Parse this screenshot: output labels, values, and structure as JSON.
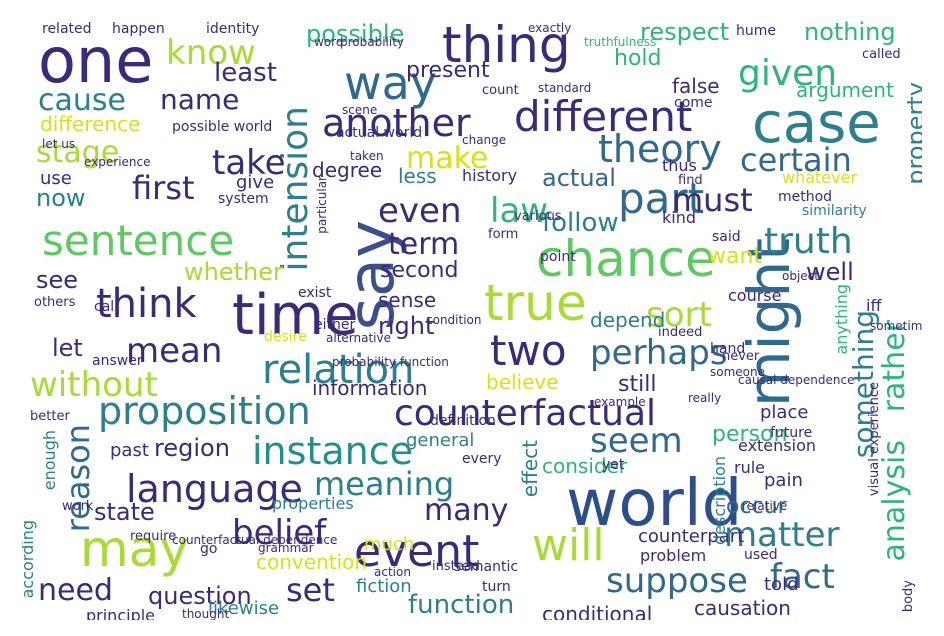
{
  "palette": {
    "dark_purple": "#440154",
    "indigo": "#3b2a7a",
    "blue": "#31688e",
    "teal_blue": "#2c7f8e",
    "teal": "#21908d",
    "green_teal": "#2fb47c",
    "green": "#5ec962",
    "lime": "#a8db34",
    "yellow": "#d8e219",
    "bright_yellow": "#e6e419"
  },
  "words": [
    {
      "id": "world",
      "text": "world"
    },
    {
      "id": "one",
      "text": "one"
    },
    {
      "id": "say",
      "text": "say"
    },
    {
      "id": "time",
      "text": "time"
    },
    {
      "id": "case",
      "text": "case"
    },
    {
      "id": "might",
      "text": "might"
    },
    {
      "id": "thing",
      "text": "thing"
    },
    {
      "id": "way",
      "text": "way"
    },
    {
      "id": "chance",
      "text": "chance"
    },
    {
      "id": "true",
      "text": "true"
    },
    {
      "id": "event",
      "text": "event"
    },
    {
      "id": "may",
      "text": "may"
    },
    {
      "id": "will",
      "text": "will"
    },
    {
      "id": "sentence",
      "text": "sentence"
    },
    {
      "id": "different",
      "text": "different"
    },
    {
      "id": "another",
      "text": "another"
    },
    {
      "id": "relation",
      "text": "relation"
    },
    {
      "id": "language",
      "text": "language"
    },
    {
      "id": "proposition",
      "text": "proposition"
    },
    {
      "id": "counterfactual",
      "text": "counterfactual"
    },
    {
      "id": "intension",
      "text": "intension"
    },
    {
      "id": "part",
      "text": "part"
    },
    {
      "id": "think",
      "text": "think"
    },
    {
      "id": "two",
      "text": "two"
    },
    {
      "id": "cause",
      "text": "cause"
    },
    {
      "id": "given",
      "text": "given"
    },
    {
      "id": "know",
      "text": "know"
    },
    {
      "id": "stage",
      "text": "stage"
    },
    {
      "id": "take",
      "text": "take"
    },
    {
      "id": "first",
      "text": "first"
    },
    {
      "id": "theory",
      "text": "theory"
    },
    {
      "id": "certain",
      "text": "certain"
    },
    {
      "id": "make",
      "text": "make"
    },
    {
      "id": "truth",
      "text": "truth"
    },
    {
      "id": "must",
      "text": "must"
    },
    {
      "id": "even",
      "text": "even"
    },
    {
      "id": "law",
      "text": "law"
    },
    {
      "id": "term",
      "text": "term"
    },
    {
      "id": "something",
      "text": "something"
    },
    {
      "id": "rather",
      "text": "rather"
    },
    {
      "id": "analysis",
      "text": "analysis"
    },
    {
      "id": "perhaps",
      "text": "perhaps"
    },
    {
      "id": "mean",
      "text": "mean"
    },
    {
      "id": "without",
      "text": "without"
    },
    {
      "id": "instance",
      "text": "instance"
    },
    {
      "id": "seem",
      "text": "seem"
    },
    {
      "id": "meaning",
      "text": "meaning"
    },
    {
      "id": "belief",
      "text": "belief"
    },
    {
      "id": "reason",
      "text": "reason"
    },
    {
      "id": "suppose",
      "text": "suppose"
    },
    {
      "id": "fact",
      "text": "fact"
    },
    {
      "id": "matter",
      "text": "matter"
    },
    {
      "id": "need",
      "text": "need"
    },
    {
      "id": "set",
      "text": "set"
    },
    {
      "id": "question",
      "text": "question"
    },
    {
      "id": "function",
      "text": "function"
    },
    {
      "id": "many",
      "text": "many"
    },
    {
      "id": "sort",
      "text": "sort"
    },
    {
      "id": "possible",
      "text": "possible"
    },
    {
      "id": "name",
      "text": "name"
    },
    {
      "id": "least",
      "text": "least"
    },
    {
      "id": "difference",
      "text": "difference"
    },
    {
      "id": "now",
      "text": "now"
    },
    {
      "id": "see",
      "text": "see"
    },
    {
      "id": "whether",
      "text": "whether"
    },
    {
      "id": "follow",
      "text": "follow"
    },
    {
      "id": "well",
      "text": "well"
    },
    {
      "id": "property",
      "text": "property"
    },
    {
      "id": "respect",
      "text": "respect"
    },
    {
      "id": "nothing",
      "text": "nothing"
    },
    {
      "id": "present",
      "text": "present"
    },
    {
      "id": "hold",
      "text": "hold"
    },
    {
      "id": "argument",
      "text": "argument"
    },
    {
      "id": "false",
      "text": "false"
    },
    {
      "id": "actual",
      "text": "actual"
    },
    {
      "id": "less",
      "text": "less"
    },
    {
      "id": "second",
      "text": "second"
    },
    {
      "id": "sense",
      "text": "sense"
    },
    {
      "id": "depend",
      "text": "depend"
    },
    {
      "id": "believe",
      "text": "believe"
    },
    {
      "id": "still",
      "text": "still"
    },
    {
      "id": "right",
      "text": "right"
    },
    {
      "id": "let",
      "text": "let"
    },
    {
      "id": "region",
      "text": "region"
    },
    {
      "id": "state",
      "text": "state"
    },
    {
      "id": "convention",
      "text": "convention"
    },
    {
      "id": "much",
      "text": "much"
    },
    {
      "id": "consider",
      "text": "consider"
    },
    {
      "id": "person",
      "text": "person"
    },
    {
      "id": "effect",
      "text": "effect"
    },
    {
      "id": "general",
      "text": "general"
    },
    {
      "id": "past",
      "text": "past"
    },
    {
      "id": "give",
      "text": "give"
    },
    {
      "id": "use",
      "text": "use"
    },
    {
      "id": "degree",
      "text": "degree"
    },
    {
      "id": "history",
      "text": "history"
    },
    {
      "id": "want",
      "text": "want"
    },
    {
      "id": "information",
      "text": "information"
    },
    {
      "id": "occur",
      "text": "occur"
    },
    {
      "id": "counterpart",
      "text": "counterpart"
    },
    {
      "id": "conditional",
      "text": "conditional"
    },
    {
      "id": "causation",
      "text": "causation"
    },
    {
      "id": "fiction",
      "text": "fiction"
    },
    {
      "id": "likewise",
      "text": "likewise"
    },
    {
      "id": "principle",
      "text": "principle"
    },
    {
      "id": "pain",
      "text": "pain"
    },
    {
      "id": "rule",
      "text": "rule"
    },
    {
      "id": "extension",
      "text": "extension"
    },
    {
      "id": "description",
      "text": "description"
    },
    {
      "id": "anything",
      "text": "anything"
    },
    {
      "id": "course",
      "text": "course"
    },
    {
      "id": "place",
      "text": "place"
    },
    {
      "id": "told",
      "text": "told"
    },
    {
      "id": "problem",
      "text": "problem"
    },
    {
      "id": "properties",
      "text": "properties"
    },
    {
      "id": "according",
      "text": "according"
    },
    {
      "id": "enough",
      "text": "enough"
    },
    {
      "id": "answer",
      "text": "answer"
    },
    {
      "id": "related",
      "text": "related"
    },
    {
      "id": "happen",
      "text": "happen"
    },
    {
      "id": "identity",
      "text": "identity"
    },
    {
      "id": "exactly",
      "text": "exactly"
    },
    {
      "id": "hume",
      "text": "hume"
    },
    {
      "id": "called",
      "text": "called"
    },
    {
      "id": "whatever",
      "text": "whatever"
    },
    {
      "id": "method",
      "text": "method"
    },
    {
      "id": "similarity",
      "text": "similarity"
    },
    {
      "id": "visual experience",
      "text": "visual experience"
    },
    {
      "id": "iff",
      "text": "iff"
    },
    {
      "id": "thus",
      "text": "thus"
    },
    {
      "id": "kind",
      "text": "kind"
    },
    {
      "id": "point",
      "text": "point"
    },
    {
      "id": "said",
      "text": "said"
    },
    {
      "id": "system",
      "text": "system"
    },
    {
      "id": "possible world",
      "text": "possible world"
    },
    {
      "id": "actual world",
      "text": "actual world"
    },
    {
      "id": "experience",
      "text": "experience"
    },
    {
      "id": "call",
      "text": "call"
    },
    {
      "id": "others",
      "text": "others"
    },
    {
      "id": "either",
      "text": "either"
    },
    {
      "id": "alternative",
      "text": "alternative"
    },
    {
      "id": "condition",
      "text": "condition"
    },
    {
      "id": "definition",
      "text": "definition"
    },
    {
      "id": "every",
      "text": "every"
    },
    {
      "id": "yet",
      "text": "yet"
    },
    {
      "id": "future",
      "text": "future"
    },
    {
      "id": "better",
      "text": "better"
    },
    {
      "id": "work",
      "text": "work"
    },
    {
      "id": "go",
      "text": "go"
    },
    {
      "id": "semantic",
      "text": "semantic"
    },
    {
      "id": "used",
      "text": "used"
    },
    {
      "id": "turn",
      "text": "turn"
    },
    {
      "id": "come",
      "text": "come"
    },
    {
      "id": "count",
      "text": "count"
    },
    {
      "id": "standard",
      "text": "standard"
    },
    {
      "id": "change",
      "text": "change"
    },
    {
      "id": "word",
      "text": "word"
    },
    {
      "id": "probability",
      "text": "probability"
    },
    {
      "id": "truthfulness",
      "text": "truthfulness"
    },
    {
      "id": "taken",
      "text": "taken"
    },
    {
      "id": "scene",
      "text": "scene"
    },
    {
      "id": "let us",
      "text": "let us"
    },
    {
      "id": "indeed",
      "text": "indeed"
    },
    {
      "id": "really",
      "text": "really"
    },
    {
      "id": "find",
      "text": "find"
    },
    {
      "id": "counterfactual dependence",
      "text": "counterfactual dependence"
    },
    {
      "id": "grammar",
      "text": "grammar"
    },
    {
      "id": "instead",
      "text": "instead"
    },
    {
      "id": "action",
      "text": "action"
    },
    {
      "id": "probability function",
      "text": "probability function"
    },
    {
      "id": "relative",
      "text": "relative"
    },
    {
      "id": "desire",
      "text": "desire"
    },
    {
      "id": "object",
      "text": "object"
    },
    {
      "id": "body",
      "text": "body"
    },
    {
      "id": "sometimes",
      "text": "sometimes"
    },
    {
      "id": "causal dependence",
      "text": "causal dependence"
    },
    {
      "id": "example",
      "text": "example"
    },
    {
      "id": "hand",
      "text": "hand"
    },
    {
      "id": "form",
      "text": "form"
    },
    {
      "id": "various",
      "text": "various"
    },
    {
      "id": "exist",
      "text": "exist"
    },
    {
      "id": "particular",
      "text": "particular"
    },
    {
      "id": "require",
      "text": "require"
    },
    {
      "id": "thought",
      "text": "thought"
    },
    {
      "id": "never",
      "text": "never"
    },
    {
      "id": "someone",
      "text": "someone"
    }
  ]
}
